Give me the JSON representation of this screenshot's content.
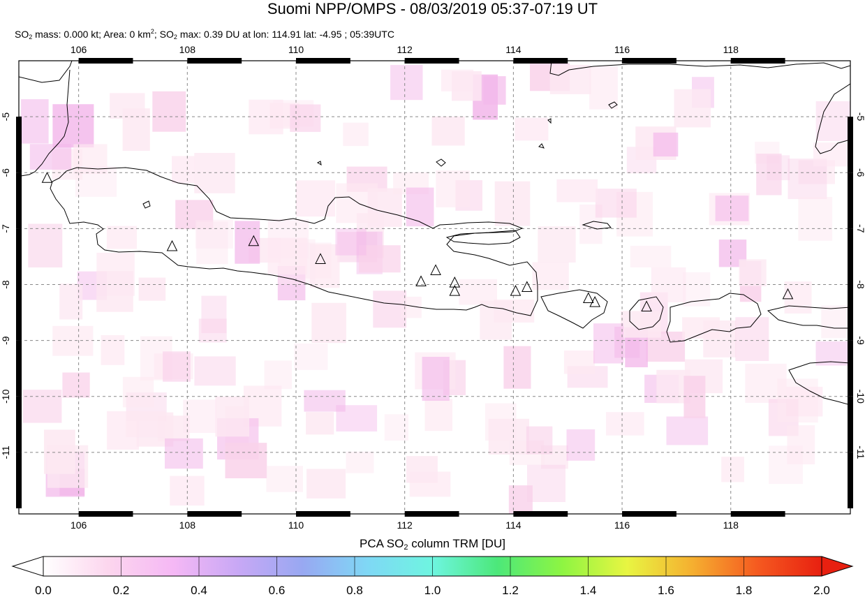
{
  "header": {
    "title": "Suomi NPP/OMPS - 08/03/2019 05:37-07:19 UT",
    "subtitle": {
      "p1": "SO",
      "sub1": "2",
      "p2": " mass: 0.000 kt; Area: 0 km",
      "sup1": "2",
      "p3": "; SO",
      "sub2": "2",
      "p4": " max: 0.39 DU at lon: 114.91 lat: -4.95 ; 05:39UTC"
    }
  },
  "map": {
    "lon_range": [
      104.9,
      120.2
    ],
    "lat_range": [
      -12.1,
      -4.0
    ],
    "lon_ticks": [
      "106",
      "108",
      "110",
      "112",
      "114",
      "116",
      "118"
    ],
    "lat_ticks": [
      "-5",
      "-6",
      "-7",
      "-8",
      "-9",
      "-10",
      "-11"
    ],
    "volcano_markers": [
      {
        "lon": 105.42,
        "lat": -6.1
      },
      {
        "lon": 107.72,
        "lat": -7.32
      },
      {
        "lon": 109.22,
        "lat": -7.23
      },
      {
        "lon": 110.45,
        "lat": -7.55
      },
      {
        "lon": 112.3,
        "lat": -7.95
      },
      {
        "lon": 112.57,
        "lat": -7.75
      },
      {
        "lon": 112.92,
        "lat": -7.97
      },
      {
        "lon": 112.92,
        "lat": -8.12
      },
      {
        "lon": 114.04,
        "lat": -8.12
      },
      {
        "lon": 114.25,
        "lat": -8.05
      },
      {
        "lon": 115.38,
        "lat": -8.25
      },
      {
        "lon": 115.5,
        "lat": -8.32
      },
      {
        "lon": 116.45,
        "lat": -8.4
      },
      {
        "lon": 119.05,
        "lat": -8.18
      }
    ],
    "colors": {
      "land_outline": "#000000",
      "grid": "#888888",
      "haze_light": "#fde8f2",
      "haze_medium": "#f9d2ea",
      "haze_strong": "#f3b8ea"
    }
  },
  "colorbar": {
    "title_part1": "PCA SO",
    "title_sub": "2",
    "title_part2": " column TRM [DU]",
    "min": 0.0,
    "max": 2.0,
    "tick_labels": [
      "0.0",
      "0.2",
      "0.4",
      "0.6",
      "0.8",
      "1.0",
      "1.2",
      "1.4",
      "1.6",
      "1.8",
      "2.0"
    ],
    "stops": [
      "#ffffff",
      "#fcd6ee",
      "#f5b8f5",
      "#c8a8f5",
      "#98a8f2",
      "#7fd8f5",
      "#6ef5e0",
      "#4ce87a",
      "#8ef542",
      "#e8f542",
      "#f5b030",
      "#f55a20",
      "#e82010"
    ]
  }
}
